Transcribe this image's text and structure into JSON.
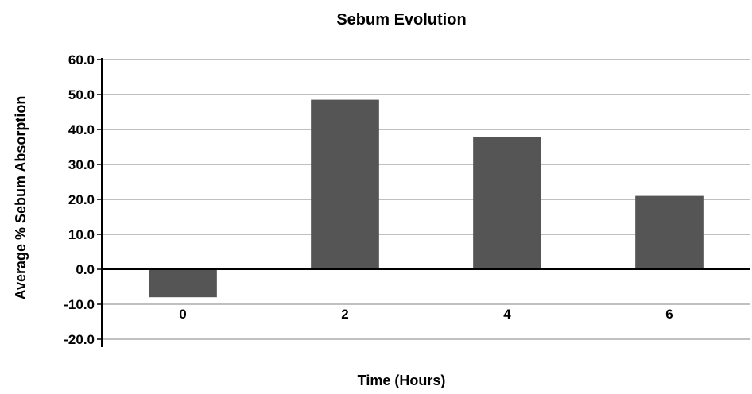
{
  "chart_data": {
    "type": "bar",
    "title": "Sebum Evolution",
    "xlabel": "Time (Hours)",
    "ylabel": "Average % Sebum Absorption",
    "categories": [
      "0",
      "2",
      "4",
      "6"
    ],
    "values": [
      -8.0,
      48.5,
      37.8,
      21.0
    ],
    "ylim": [
      -20,
      60
    ],
    "yticks": [
      "60.0",
      "50.0",
      "40.0",
      "30.0",
      "20.0",
      "10.0",
      "0.0",
      "-10.0",
      "-20.0"
    ],
    "ytick_values": [
      60,
      50,
      40,
      30,
      20,
      10,
      0,
      -10,
      -20
    ],
    "grid": true,
    "legend": "none",
    "bar_color": "#555555",
    "grid_color": "#9a9a9a",
    "axis_color": "#000000"
  }
}
